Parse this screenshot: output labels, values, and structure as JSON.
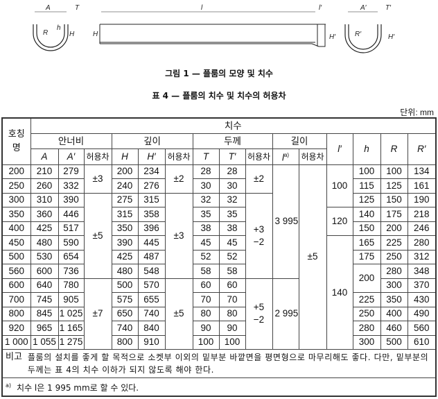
{
  "figure": {
    "labels": {
      "A": "A",
      "T": "T",
      "R": "R",
      "h": "h",
      "H": "H",
      "l": "l",
      "l_prime": "l′",
      "A_prime": "A′",
      "T_prime": "T′",
      "R_prime": "R′",
      "H_prime": "H′"
    },
    "caption": "그림 1 — 플룸의 모양 및 치수"
  },
  "table_title": "표 4 — 플룸의 치수 및 치수의 허용차",
  "unit": "단위: mm",
  "header": {
    "nominal": "호칭명",
    "dims": "치수",
    "width": "안너비",
    "depth": "깊이",
    "thickness": "두께",
    "length": "길이",
    "tol": "허용차",
    "A": "A",
    "A_prime": "A′",
    "H": "H",
    "H_prime": "H′",
    "T": "T",
    "T_prime": "T′",
    "l": "l",
    "l_sup": "a)",
    "l_prime": "l′",
    "h": "h",
    "R": "R",
    "R_prime": "R′"
  },
  "rows": [
    {
      "n": "200",
      "A": "210",
      "Ap": "279",
      "H": "200",
      "Hp": "234",
      "T": "28",
      "Tp": "28",
      "R": "100",
      "Rp": "134"
    },
    {
      "n": "250",
      "A": "260",
      "Ap": "332",
      "H": "240",
      "Hp": "276",
      "T": "30",
      "Tp": "30",
      "R": "125",
      "Rp": "161"
    },
    {
      "n": "300",
      "A": "310",
      "Ap": "390",
      "H": "275",
      "Hp": "315",
      "T": "32",
      "Tp": "32",
      "R": "150",
      "Rp": "190"
    },
    {
      "n": "350",
      "A": "360",
      "Ap": "446",
      "H": "315",
      "Hp": "358",
      "T": "35",
      "Tp": "35",
      "R": "175",
      "Rp": "218"
    },
    {
      "n": "400",
      "A": "425",
      "Ap": "517",
      "H": "350",
      "Hp": "396",
      "T": "38",
      "Tp": "38",
      "R": "200",
      "Rp": "246"
    },
    {
      "n": "450",
      "A": "480",
      "Ap": "590",
      "H": "390",
      "Hp": "445",
      "T": "45",
      "Tp": "45",
      "R": "225",
      "Rp": "280"
    },
    {
      "n": "500",
      "A": "530",
      "Ap": "654",
      "H": "425",
      "Hp": "487",
      "T": "52",
      "Tp": "52",
      "R": "250",
      "Rp": "312"
    },
    {
      "n": "560",
      "A": "600",
      "Ap": "736",
      "H": "480",
      "Hp": "548",
      "T": "58",
      "Tp": "58",
      "R": "280",
      "Rp": "348"
    },
    {
      "n": "600",
      "A": "640",
      "Ap": "780",
      "H": "500",
      "Hp": "570",
      "T": "60",
      "Tp": "60",
      "R": "300",
      "Rp": "370"
    },
    {
      "n": "700",
      "A": "745",
      "Ap": "905",
      "H": "575",
      "Hp": "655",
      "T": "70",
      "Tp": "70",
      "R": "350",
      "Rp": "430"
    },
    {
      "n": "800",
      "A": "845",
      "Ap": "1 025",
      "H": "650",
      "Hp": "740",
      "T": "80",
      "Tp": "80",
      "R": "400",
      "Rp": "490"
    },
    {
      "n": "920",
      "A": "965",
      "Ap": "1 165",
      "H": "740",
      "Hp": "840",
      "T": "90",
      "Tp": "90",
      "R": "460",
      "Rp": "560"
    },
    {
      "n": "1 000",
      "A": "1 055",
      "Ap": "1 275",
      "H": "800",
      "Hp": "910",
      "T": "100",
      "Tp": "100",
      "R": "500",
      "Rp": "610"
    }
  ],
  "tol_A": [
    "±3",
    "±5",
    "±7"
  ],
  "tol_H": [
    "±2",
    "±3",
    "±5"
  ],
  "tol_T": [
    "±2",
    "+3\n−2",
    "+5\n−2"
  ],
  "l": [
    "3 995",
    "2 995"
  ],
  "tol_l": "±5",
  "l_prime": [
    "100",
    "120",
    "140"
  ],
  "h": [
    "100",
    "115",
    "125",
    "140",
    "150",
    "165",
    "175",
    "200",
    "225",
    "250",
    "280",
    "300"
  ],
  "remark_label": "비고",
  "remark": "플룸의 설치를 좋게 할 목적으로 소켓부 이외의 밑부분 바깥면을 평면형으로 마무리해도 좋다. 다만, 밑부분의 두께는 표 4의 치수 이하가 되지 않도록 해야 한다.",
  "footnote_mark": "a)",
  "footnote": "치수 l은 1 995 mm로 할 수 있다."
}
